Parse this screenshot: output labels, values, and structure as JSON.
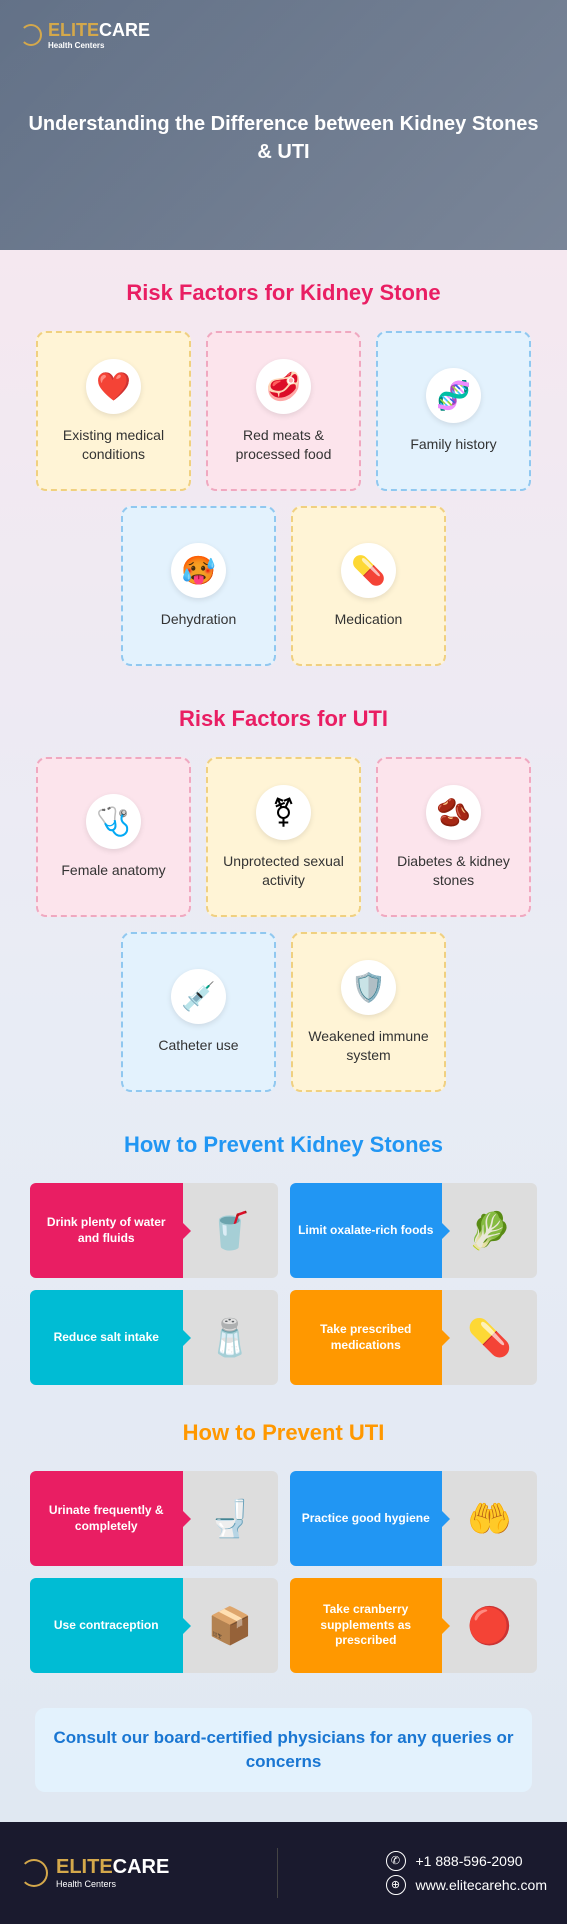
{
  "brand": {
    "name": "ELITECARE",
    "name_part1": "ELITE",
    "name_part2": "CARE",
    "tagline": "Health Centers"
  },
  "header": {
    "title": "Understanding the Difference between Kidney Stones & UTI"
  },
  "sections": {
    "kidney_risk": {
      "title": "Risk Factors for Kidney Stone",
      "cards": [
        {
          "label": "Existing medical conditions",
          "icon": "❤️",
          "color": "yellow"
        },
        {
          "label": "Red meats & processed food",
          "icon": "🥩",
          "color": "pink"
        },
        {
          "label": "Family history",
          "icon": "🧬",
          "color": "blue"
        },
        {
          "label": "Dehydration",
          "icon": "🥵",
          "color": "blue"
        },
        {
          "label": "Medication",
          "icon": "💊",
          "color": "yellow"
        }
      ]
    },
    "uti_risk": {
      "title": "Risk Factors for UTI",
      "cards": [
        {
          "label": "Female anatomy",
          "icon": "🩺",
          "color": "pink"
        },
        {
          "label": "Unprotected sexual activity",
          "icon": "⚧",
          "color": "yellow"
        },
        {
          "label": "Diabetes & kidney stones",
          "icon": "🫘",
          "color": "pink"
        },
        {
          "label": "Catheter use",
          "icon": "💉",
          "color": "blue"
        },
        {
          "label": "Weakened immune system",
          "icon": "🛡️",
          "color": "yellow"
        }
      ]
    },
    "kidney_prevent": {
      "title": "How to Prevent Kidney Stones",
      "cards": [
        {
          "label": "Drink plenty of water and fluids",
          "img": "🥤",
          "color": "pink"
        },
        {
          "label": "Limit oxalate-rich foods",
          "img": "🥬",
          "color": "blue"
        },
        {
          "label": "Reduce salt intake",
          "img": "🧂",
          "color": "teal"
        },
        {
          "label": "Take prescribed medications",
          "img": "💊",
          "color": "orange"
        }
      ]
    },
    "uti_prevent": {
      "title": "How to Prevent UTI",
      "cards": [
        {
          "label": "Urinate frequently & completely",
          "img": "🚽",
          "color": "pink"
        },
        {
          "label": "Practice good hygiene",
          "img": "🤲",
          "color": "blue"
        },
        {
          "label": "Use contraception",
          "img": "📦",
          "color": "teal"
        },
        {
          "label": "Take cranberry supplements as prescribed",
          "img": "🔴",
          "color": "orange"
        }
      ]
    }
  },
  "cta": {
    "text": "Consult our board-certified physicians for any queries or concerns"
  },
  "footer": {
    "phone": "+1 888-596-2090",
    "website": "www.elitecarehc.com"
  },
  "colors": {
    "brand_gold": "#d4a84b",
    "red": "#e91e63",
    "blue": "#2196f3",
    "orange": "#ff9800",
    "teal": "#00bcd4",
    "footer_bg": "#1a1a2e"
  }
}
